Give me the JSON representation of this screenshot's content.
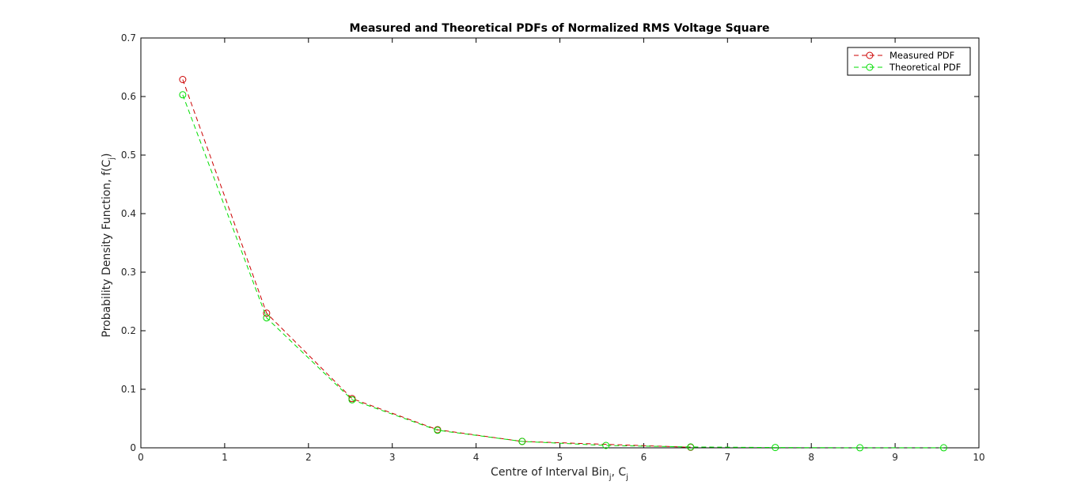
{
  "chart_data": {
    "type": "line",
    "title": "Measured and Theoretical PDFs of Normalized RMS Voltage Square",
    "xlabel": {
      "main": "Centre of Interval Bin",
      "sub": "j",
      "sep": ", C",
      "sub2": "j"
    },
    "ylabel": {
      "main": "Probability Density Function, f(C",
      "sub": "j",
      "tail": ")"
    },
    "xlim": [
      0,
      10
    ],
    "ylim": [
      0,
      0.7
    ],
    "xticks": [
      "0",
      "1",
      "2",
      "3",
      "4",
      "5",
      "6",
      "7",
      "8",
      "9",
      "10"
    ],
    "yticks": [
      "0",
      "0.1",
      "0.2",
      "0.3",
      "0.4",
      "0.5",
      "0.6",
      "0.7"
    ],
    "grid": false,
    "legend_position": "top-right",
    "series": [
      {
        "name": "Measured PDF",
        "color": "#cc0000",
        "style": "dashed",
        "marker": "circle",
        "x": [
          0.5,
          1.5,
          2.52,
          3.54,
          4.55,
          6.56
        ],
        "y": [
          0.629,
          0.23,
          0.084,
          0.031,
          0.011,
          0.001
        ]
      },
      {
        "name": "Theoretical PDF",
        "color": "#00dd00",
        "style": "dashed",
        "marker": "circle",
        "x": [
          0.5,
          1.5,
          2.52,
          3.54,
          4.55,
          5.55,
          6.56,
          7.57,
          8.58,
          9.58
        ],
        "y": [
          0.603,
          0.222,
          0.082,
          0.03,
          0.011,
          0.004,
          0.0015,
          0.0006,
          0.0002,
          0.0001
        ]
      }
    ]
  }
}
